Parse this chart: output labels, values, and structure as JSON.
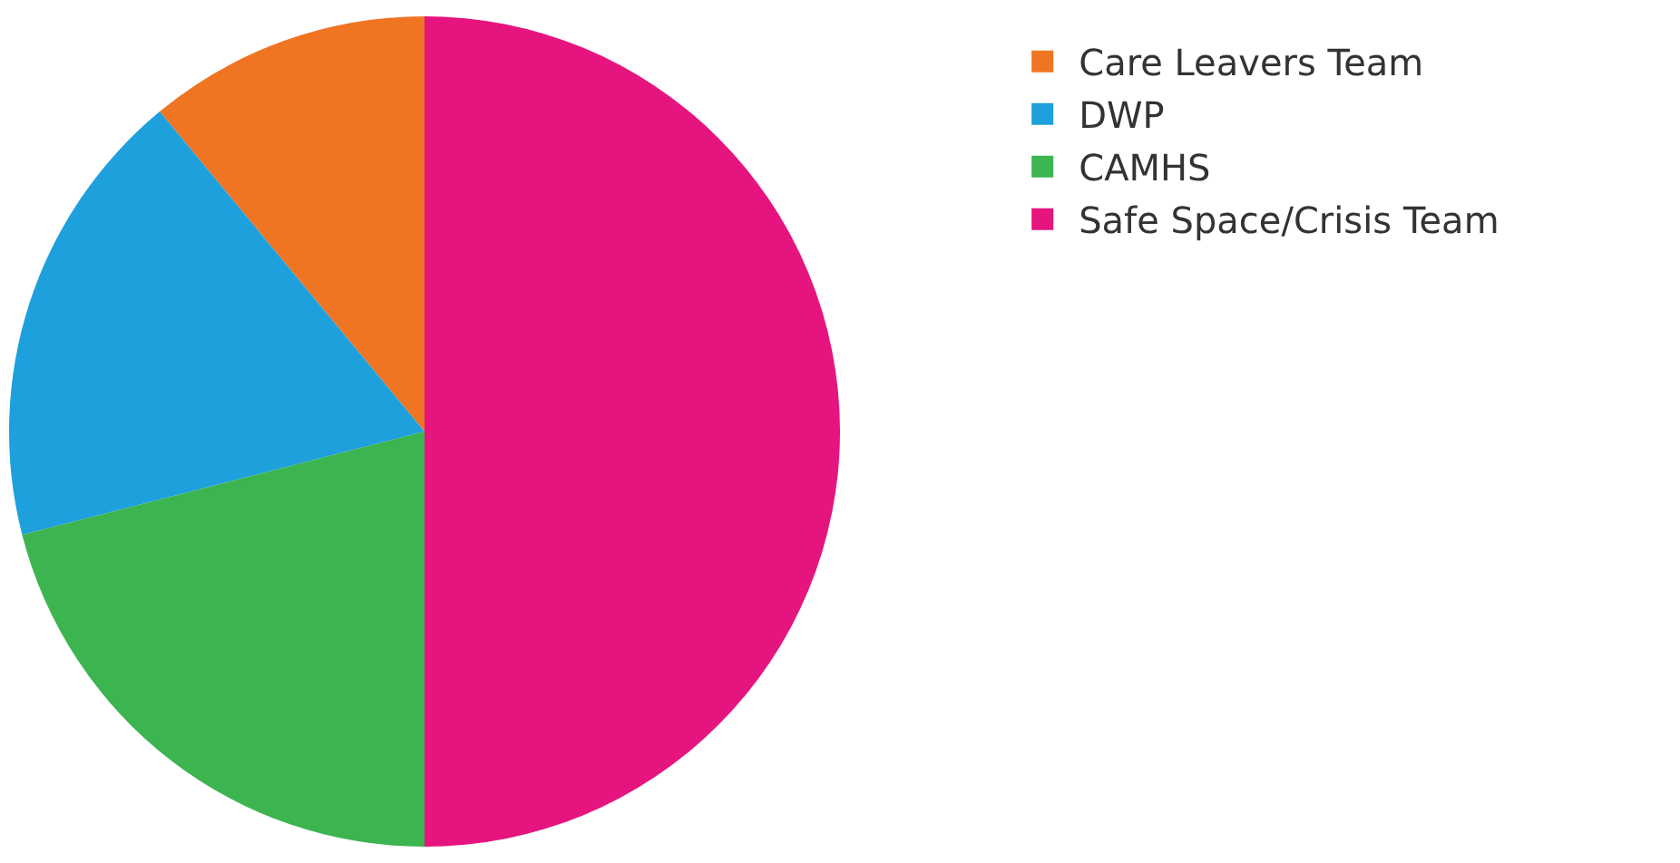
{
  "chart_data": {
    "type": "pie",
    "categories": [
      "Care Leavers Team",
      "DWP",
      "CAMHS",
      "Safe Space/Crisis Team"
    ],
    "values": [
      11,
      18,
      21,
      50
    ],
    "colors": [
      "#f07522",
      "#1ea0dc",
      "#3cb450",
      "#e6147f"
    ],
    "legend": "right"
  }
}
